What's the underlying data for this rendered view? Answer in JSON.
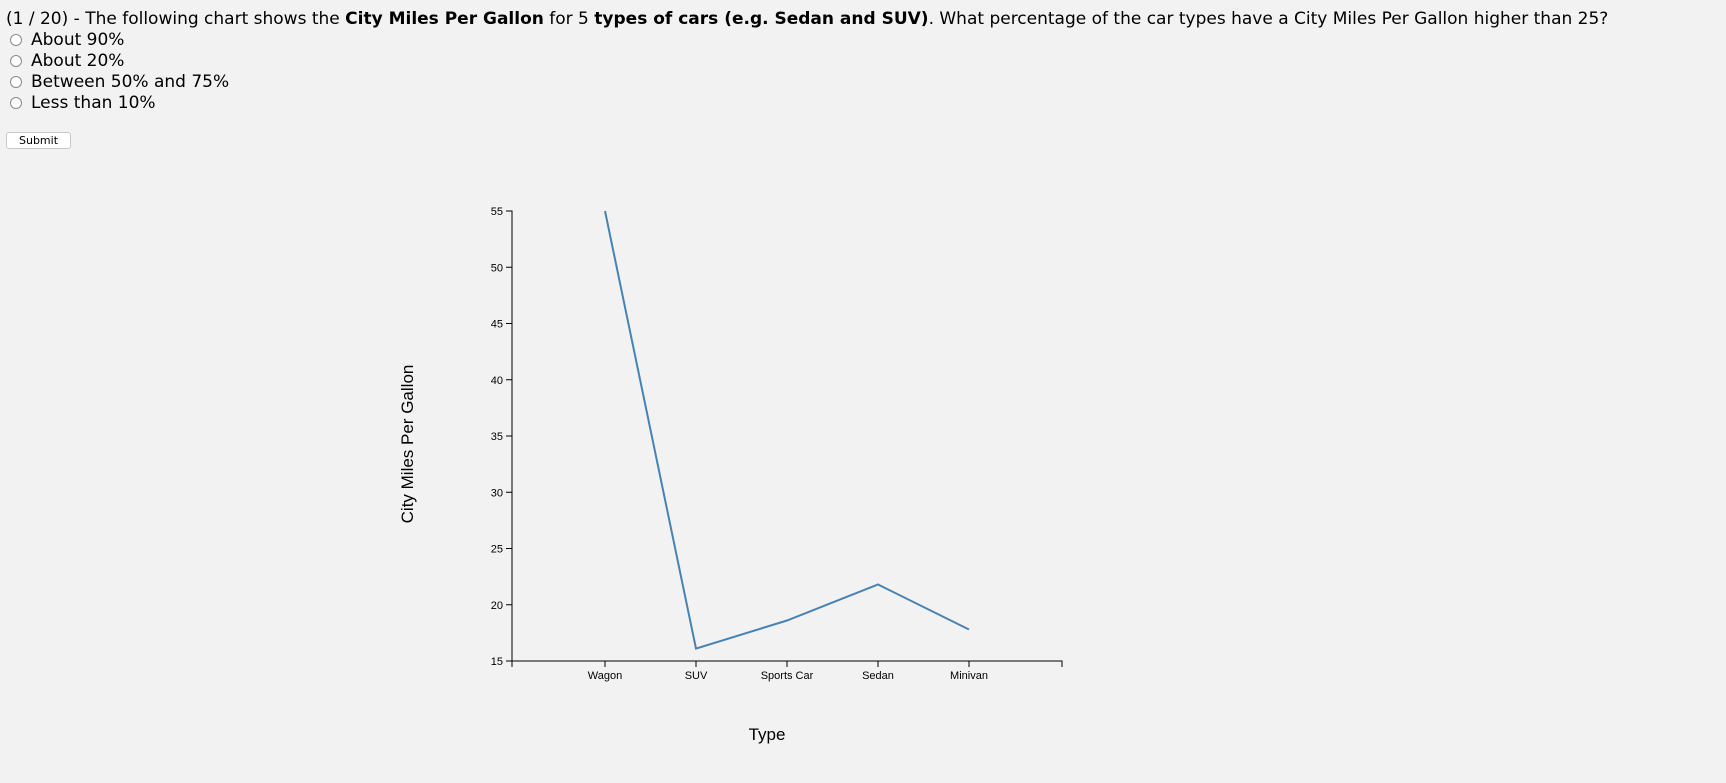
{
  "question": {
    "prefix": "(1 / 20) - The following chart shows the ",
    "bold1": "City Miles Per Gallon",
    "mid": " for 5 ",
    "bold2": "types of cars (e.g. Sedan and SUV)",
    "suffix": ". What percentage of the car types have a City Miles Per Gallon higher than 25?"
  },
  "options": [
    {
      "label": "About 90%"
    },
    {
      "label": "About 20%"
    },
    {
      "label": "Between 50% and 75%"
    },
    {
      "label": "Less than 10%"
    }
  ],
  "submit_label": "Submit",
  "chart_data": {
    "type": "line",
    "categories": [
      "Wagon",
      "SUV",
      "Sports Car",
      "Sedan",
      "Minivan"
    ],
    "values": [
      55,
      16.1,
      18.6,
      21.8,
      17.8
    ],
    "xlabel": "Type",
    "ylabel": "City Miles Per Gallon",
    "ylim": [
      15,
      55
    ],
    "yticks": [
      15,
      20,
      25,
      30,
      35,
      40,
      45,
      50,
      55
    ],
    "line_color": "#4682b4",
    "grid": false
  }
}
